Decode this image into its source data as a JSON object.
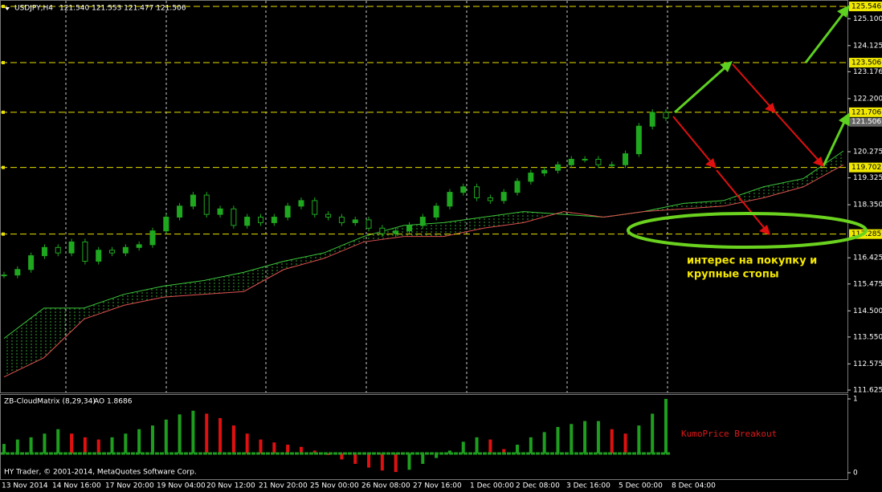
{
  "header": {
    "symbol": "USDJPY,H4",
    "ohlc": "121.540 121.553 121.477 121.506"
  },
  "chart_data": {
    "type": "candlestick",
    "closes": [
      115.8,
      116.0,
      116.5,
      116.8,
      116.6,
      117.0,
      116.3,
      116.7,
      116.6,
      116.8,
      116.9,
      117.4,
      117.9,
      118.3,
      118.7,
      118.0,
      118.2,
      117.6,
      117.9,
      117.7,
      117.9,
      118.3,
      118.5,
      118.0,
      117.9,
      117.7,
      117.8,
      117.5,
      117.3,
      117.4,
      117.6,
      117.9,
      118.3,
      118.8,
      119.0,
      118.6,
      118.5,
      118.8,
      119.2,
      119.5,
      119.6,
      119.8,
      120.0,
      120.0,
      119.8,
      119.8,
      120.2,
      121.2,
      121.7,
      121.5
    ],
    "senkou_a": [
      113.5,
      114.6,
      114.6,
      115.1,
      115.4,
      115.6,
      115.9,
      116.3,
      116.6,
      117.2,
      117.6,
      117.7,
      117.9,
      118.1,
      118.0,
      117.9,
      118.1,
      118.4,
      118.5,
      119.0,
      119.3,
      120.3
    ],
    "senkou_b": [
      112.1,
      112.8,
      114.2,
      114.7,
      115.0,
      115.1,
      115.2,
      116.0,
      116.4,
      117.0,
      117.2,
      117.2,
      117.5,
      117.7,
      118.1,
      117.9,
      118.1,
      118.2,
      118.3,
      118.6,
      119.0,
      119.8
    ],
    "up_color": "#1fa81f",
    "span_a_color": "#3cc83c",
    "span_b_color": "#e05050",
    "ylim": [
      111.625,
      125.546
    ],
    "yticks": [
      {
        "value": 125.1,
        "label": "125.100"
      },
      {
        "value": 124.125,
        "label": "124.125"
      },
      {
        "value": 123.176,
        "label": "123.176"
      },
      {
        "value": 122.2,
        "label": "122.200"
      },
      {
        "value": 120.275,
        "label": "120.275"
      },
      {
        "value": 119.325,
        "label": "119.325"
      },
      {
        "value": 118.35,
        "label": "118.350"
      },
      {
        "value": 116.425,
        "label": "116.425"
      },
      {
        "value": 115.475,
        "label": "115.475"
      },
      {
        "value": 114.5,
        "label": "114.500"
      },
      {
        "value": 113.55,
        "label": "113.550"
      },
      {
        "value": 112.575,
        "label": "112.575"
      },
      {
        "value": 111.625,
        "label": "111.625"
      }
    ],
    "levels": [
      {
        "value": 125.546,
        "label": "125.546"
      },
      {
        "value": 123.506,
        "label": "123.506"
      },
      {
        "value": 121.706,
        "label": "121.706"
      },
      {
        "value": 119.702,
        "label": "119.702"
      },
      {
        "value": 117.285,
        "label": "117.285"
      }
    ],
    "current_price": {
      "value": 121.506,
      "label": "121.506"
    },
    "x_labels": [
      "13 Nov 2014",
      "14 Nov 16:00",
      "17 Nov 20:00",
      "19 Nov 04:00",
      "20 Nov 12:00",
      "21 Nov 20:00",
      "25 Nov 00:00",
      "26 Nov 08:00",
      "27 Nov 16:00",
      "1 Dec 00:00",
      "2 Dec 08:00",
      "3 Dec 16:00",
      "5 Dec 00:00",
      "8 Dec 04:00"
    ]
  },
  "indicator": {
    "type": "histogram",
    "title": "ZB-CloudMatrix (8,29,34)",
    "ao_label": "AO 1.8686",
    "values": [
      0.39,
      0.45,
      0.48,
      0.53,
      0.59,
      0.53,
      0.48,
      0.45,
      0.48,
      0.53,
      0.59,
      0.64,
      0.72,
      0.79,
      0.84,
      0.8,
      0.74,
      0.64,
      0.53,
      0.45,
      0.41,
      0.38,
      0.35,
      0.3,
      0.24,
      0.18,
      0.12,
      0.07,
      0.03,
      0.01,
      0.04,
      0.12,
      0.2,
      0.3,
      0.42,
      0.48,
      0.45,
      0.32,
      0.38,
      0.48,
      0.55,
      0.62,
      0.66,
      0.7,
      0.7,
      0.59,
      0.53,
      0.64,
      0.8,
      1.0
    ],
    "ylim": [
      0,
      1
    ],
    "yticks": [
      0,
      1
    ],
    "up_color": "#1e9e1e",
    "down_color": "#e01010"
  },
  "annotations": {
    "note_line1": "интерес на покупку и",
    "note_line2": "крупные стопы",
    "signal": "KumoPrice Breakout"
  },
  "footer": "HY Trader, © 2001-2014, MetaQuotes Software Corp."
}
